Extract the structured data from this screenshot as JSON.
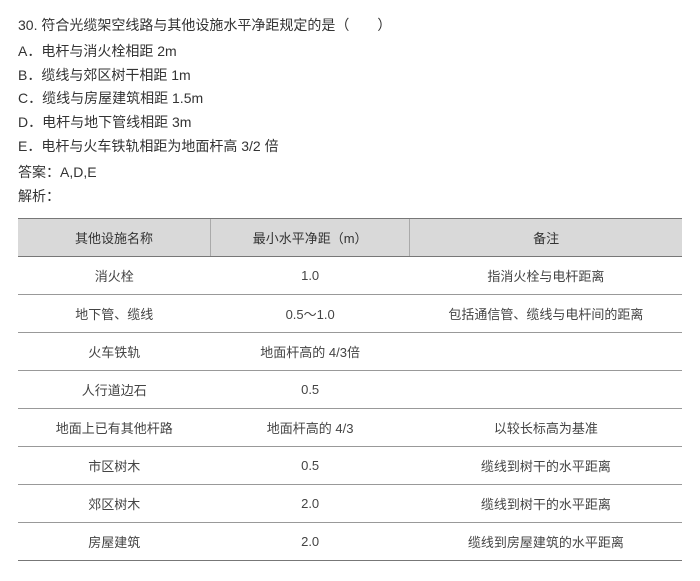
{
  "question": {
    "number": "30.",
    "text": "符合光缆架空线路与其他设施水平净距规定的是（　　）",
    "options": [
      {
        "letter": "A．",
        "text": "电杆与消火栓相距 2m"
      },
      {
        "letter": "B．",
        "text": "缆线与郊区树干相距 1m"
      },
      {
        "letter": "C．",
        "text": "缆线与房屋建筑相距 1.5m"
      },
      {
        "letter": "D．",
        "text": "电杆与地下管线相距 3m"
      },
      {
        "letter": "E．",
        "text": "电杆与火车铁轨相距为地面杆高 3/2 倍"
      }
    ],
    "answer_label": "答案：",
    "answer_value": "A,D,E",
    "analysis_label": "解析："
  },
  "table": {
    "headers": [
      "其他设施名称",
      "最小水平净距（m）",
      "备注"
    ],
    "header_bg": "#d9d9d9",
    "border_color": "#777777",
    "row_border_color": "#999999",
    "font_size_pt": 10,
    "col_widths_pct": [
      29,
      30,
      41
    ],
    "rows": [
      [
        "消火栓",
        "1.0",
        "指消火栓与电杆距离"
      ],
      [
        "地下管、缆线",
        "0.5～1.0",
        "包括通信管、缆线与电杆间的距离"
      ],
      [
        "火车铁轨",
        "地面杆高的 4/3倍",
        ""
      ],
      [
        "人行道边石",
        "0.5",
        ""
      ],
      [
        "地面上已有其他杆路",
        "地面杆高的 4/3",
        "以较长标高为基准"
      ],
      [
        "市区树木",
        "0.5",
        "缆线到树干的水平距离"
      ],
      [
        "郊区树木",
        "2.0",
        "缆线到树干的水平距离"
      ],
      [
        "房屋建筑",
        "2.0",
        "缆线到房屋建筑的水平距离"
      ]
    ]
  }
}
